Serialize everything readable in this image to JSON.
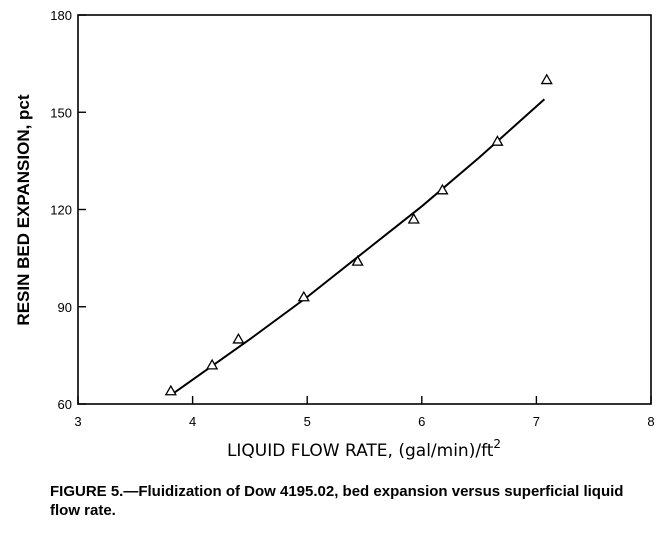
{
  "chart_data": {
    "type": "scatter",
    "title": "",
    "xlabel": "LIQUID FLOW RATE, (gal/min)/ft",
    "xlabel_superscript": "2",
    "ylabel": "RESIN BED EXPANSION, pct",
    "xlim": [
      3,
      8
    ],
    "ylim": [
      60,
      180
    ],
    "x_ticks": [
      "3",
      "4",
      "5",
      "6",
      "7",
      "8"
    ],
    "y_ticks": [
      "60",
      "90",
      "120",
      "150",
      "180"
    ],
    "grid": false,
    "series": [
      {
        "marker": "triangle",
        "points": [
          {
            "x": 3.81,
            "y": 64
          },
          {
            "x": 4.17,
            "y": 72
          },
          {
            "x": 4.4,
            "y": 80
          },
          {
            "x": 4.97,
            "y": 93
          },
          {
            "x": 5.44,
            "y": 104
          },
          {
            "x": 5.93,
            "y": 117
          },
          {
            "x": 6.18,
            "y": 126
          },
          {
            "x": 6.66,
            "y": 141
          },
          {
            "x": 7.09,
            "y": 160
          }
        ]
      },
      {
        "style": "line",
        "points": [
          {
            "x": 3.82,
            "y": 63
          },
          {
            "x": 4.5,
            "y": 80
          },
          {
            "x": 5.0,
            "y": 93
          },
          {
            "x": 5.5,
            "y": 107
          },
          {
            "x": 6.0,
            "y": 121
          },
          {
            "x": 6.5,
            "y": 136
          },
          {
            "x": 7.07,
            "y": 154
          }
        ]
      }
    ]
  },
  "caption": "FIGURE 5.—Fluidization of Dow 4195.02, bed expansion versus superficial liquid flow rate."
}
